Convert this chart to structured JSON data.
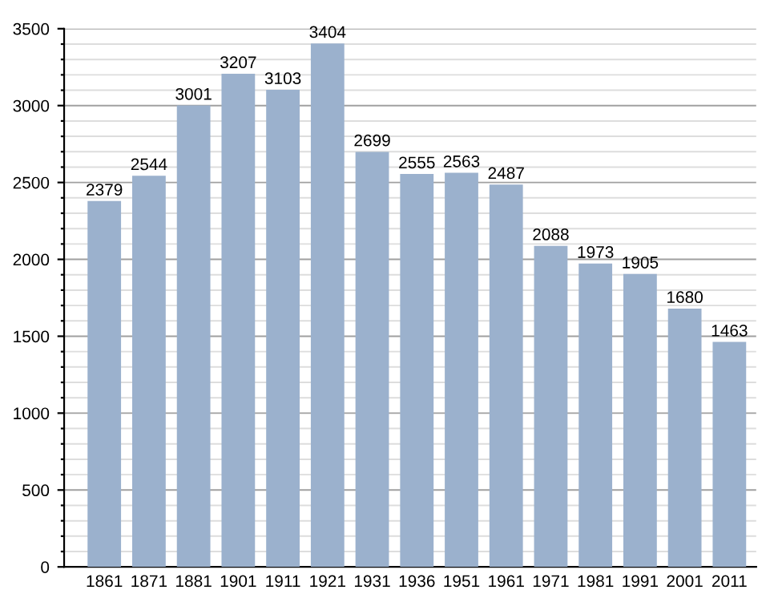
{
  "chart_data": {
    "type": "bar",
    "categories": [
      "1861",
      "1871",
      "1881",
      "1901",
      "1911",
      "1921",
      "1931",
      "1936",
      "1951",
      "1961",
      "1971",
      "1981",
      "1991",
      "2001",
      "2011"
    ],
    "values": [
      2379,
      2544,
      3001,
      3207,
      3103,
      3404,
      2699,
      2555,
      2563,
      2487,
      2088,
      1973,
      1905,
      1680,
      1463
    ],
    "color": "#9bb1cd",
    "ylim": [
      0,
      3500
    ],
    "yticks": [
      0,
      {
        "value": 100,
        "label": null
      },
      {
        "value": 200,
        "label": null
      },
      {
        "value": 300,
        "label": null
      },
      {
        "value": 400,
        "label": null
      },
      500,
      {
        "value": 600,
        "label": null
      },
      {
        "value": 700,
        "label": null
      },
      {
        "value": 800,
        "label": null
      },
      {
        "value": 900,
        "label": null
      },
      1000,
      {
        "value": 1100,
        "label": null
      },
      {
        "value": 1200,
        "label": null
      },
      {
        "value": 1300,
        "label": null
      },
      {
        "value": 1400,
        "label": null
      },
      1500,
      {
        "value": 1600,
        "label": null
      },
      {
        "value": 1700,
        "label": null
      },
      {
        "value": 1800,
        "label": null
      },
      {
        "value": 1900,
        "label": null
      },
      2000,
      {
        "value": 2100,
        "label": null
      },
      {
        "value": 2200,
        "label": null
      },
      {
        "value": 2300,
        "label": null
      },
      {
        "value": 2400,
        "label": null
      },
      2500,
      {
        "value": 2600,
        "label": null
      },
      {
        "value": 2700,
        "label": null
      },
      {
        "value": 2800,
        "label": null
      },
      {
        "value": 2900,
        "label": null
      },
      3000,
      {
        "value": 3100,
        "label": null
      },
      {
        "value": 3200,
        "label": null
      },
      {
        "value": 3300,
        "label": null
      },
      {
        "value": 3400,
        "label": null
      },
      3500
    ],
    "grid": "y",
    "data_labels": true
  }
}
